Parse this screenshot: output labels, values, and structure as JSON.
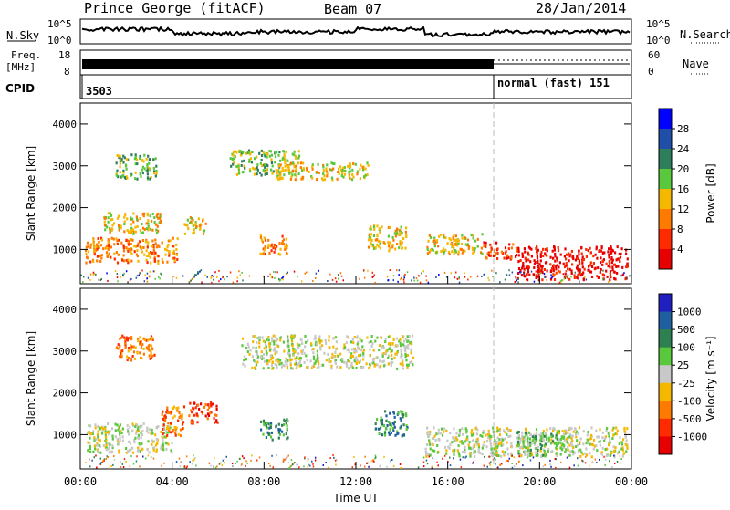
{
  "header": {
    "station": "Prince George (fitACF)",
    "beam": "Beam 07",
    "date": "28/Jan/2014"
  },
  "panels": {
    "nsky_label": "N.Sky",
    "nsearch_label": "N.Search",
    "nsky_ticks": [
      "10^5",
      "10^0"
    ],
    "nsearch_ticks": [
      "10^5",
      "10^0"
    ],
    "freq_label_top": "Freq.",
    "freq_label_bot": "[MHz]",
    "freq_ticks": [
      "18",
      "8"
    ],
    "nave_label": "Nave",
    "nave_ticks": [
      "60",
      "0"
    ],
    "cpid_label": "CPID",
    "cpid_left": "3503",
    "cpid_right": "normal (fast) 151"
  },
  "chart_data": [
    {
      "type": "heatmap",
      "title": "",
      "xlabel": "Time UT",
      "ylabel": "Slant Range [km]",
      "xticks": [
        "00:00",
        "04:00",
        "08:00",
        "12:00",
        "16:00",
        "20:00",
        "00:00"
      ],
      "yticks": [
        "1000",
        "2000",
        "3000",
        "4000"
      ],
      "xlim_hours": [
        0,
        24
      ],
      "ylim_km": [
        180,
        4500
      ],
      "colorbar_label": "Power [dB]",
      "colorbar_ticks": [
        "4",
        "8",
        "12",
        "16",
        "20",
        "24",
        "28"
      ],
      "colors": [
        "#0000ff",
        "#1f4fa8",
        "#2e7d5b",
        "#5ac83c",
        "#f5b800",
        "#ff7a00",
        "#ff2a00",
        "#e80000"
      ],
      "echo_regions": [
        {
          "t": [
            0.2,
            4.2
          ],
          "r": [
            700,
            1300
          ],
          "level": 5
        },
        {
          "t": [
            1.0,
            3.5
          ],
          "r": [
            1400,
            1900
          ],
          "level": 4
        },
        {
          "t": [
            1.5,
            3.3
          ],
          "r": [
            2700,
            3300
          ],
          "level": 3
        },
        {
          "t": [
            4.5,
            5.5
          ],
          "r": [
            1400,
            1800
          ],
          "level": 4
        },
        {
          "t": [
            6.5,
            9.5
          ],
          "r": [
            2800,
            3400
          ],
          "level": 3
        },
        {
          "t": [
            8.5,
            12.5
          ],
          "r": [
            2700,
            3100
          ],
          "level": 4
        },
        {
          "t": [
            7.8,
            9.0
          ],
          "r": [
            900,
            1400
          ],
          "level": 5
        },
        {
          "t": [
            12.5,
            14.2
          ],
          "r": [
            1000,
            1600
          ],
          "level": 4
        },
        {
          "t": [
            15.0,
            17.5
          ],
          "r": [
            900,
            1400
          ],
          "level": 4
        },
        {
          "t": [
            17.5,
            19.0
          ],
          "r": [
            800,
            1200
          ],
          "level": 6
        },
        {
          "t": [
            19.0,
            23.8
          ],
          "r": [
            300,
            1100
          ],
          "level": 7
        }
      ]
    },
    {
      "type": "heatmap",
      "title": "",
      "xlabel": "Time UT",
      "ylabel": "Slant Range [km]",
      "xticks": [
        "00:00",
        "04:00",
        "08:00",
        "12:00",
        "16:00",
        "20:00",
        "00:00"
      ],
      "yticks": [
        "1000",
        "2000",
        "3000",
        "4000"
      ],
      "xlim_hours": [
        0,
        24
      ],
      "ylim_km": [
        180,
        4500
      ],
      "colorbar_label": "Velocity [m s⁻¹]",
      "colorbar_ticks": [
        "1000",
        "500",
        "100",
        "25",
        "-25",
        "-100",
        "-500",
        "-1000"
      ],
      "colors": [
        "#2020c0",
        "#1f5fa0",
        "#2e8050",
        "#5ac83c",
        "#c8c8c8",
        "#f5b800",
        "#ff7a00",
        "#ff2a00",
        "#e80000"
      ],
      "echo_regions": [
        {
          "t": [
            0.2,
            4.0
          ],
          "r": [
            600,
            1300
          ],
          "level": 4
        },
        {
          "t": [
            3.5,
            4.5
          ],
          "r": [
            1000,
            1700
          ],
          "level": 6
        },
        {
          "t": [
            1.5,
            3.2
          ],
          "r": [
            2800,
            3400
          ],
          "level": 6
        },
        {
          "t": [
            4.7,
            6.0
          ],
          "r": [
            1300,
            1800
          ],
          "level": 7
        },
        {
          "t": [
            7.0,
            14.5
          ],
          "r": [
            2600,
            3400
          ],
          "level": 4
        },
        {
          "t": [
            7.8,
            9.0
          ],
          "r": [
            900,
            1400
          ],
          "level": 2
        },
        {
          "t": [
            12.8,
            14.2
          ],
          "r": [
            1000,
            1600
          ],
          "level": 2
        },
        {
          "t": [
            15.0,
            23.8
          ],
          "r": [
            500,
            1200
          ],
          "level": 4
        },
        {
          "t": [
            19.0,
            21.0
          ],
          "r": [
            500,
            1100
          ],
          "level": 3
        }
      ]
    }
  ]
}
